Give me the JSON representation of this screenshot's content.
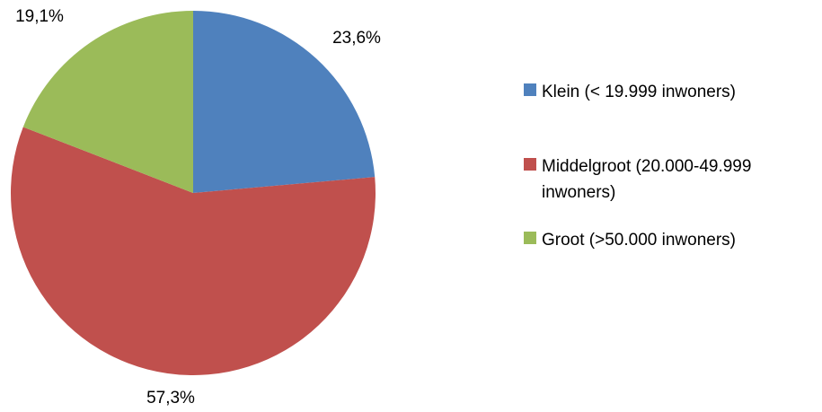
{
  "chart_data": {
    "type": "pie",
    "title": "",
    "slices": [
      {
        "label": "Klein (< 19.999 inwoners)",
        "value": 23.6,
        "display": "23,6%",
        "color": "#4F81BD"
      },
      {
        "label": "Middelgroot (20.000-49.999 inwoners)",
        "value": 57.3,
        "display": "57,3%",
        "color": "#C0504D"
      },
      {
        "label": "Groot (>50.000 inwoners)",
        "value": 19.1,
        "display": "19,1%",
        "color": "#9BBB59"
      }
    ],
    "start_angle": "12 o'clock, clockwise",
    "legend_position": "right"
  },
  "legend": {
    "items": [
      {
        "line1": "Klein (< 19.999 inwoners)",
        "line2": ""
      },
      {
        "line1": "Middelgroot (20.000-49.999",
        "line2": "inwoners)"
      },
      {
        "line1": "Groot (>50.000 inwoners)",
        "line2": ""
      }
    ]
  }
}
